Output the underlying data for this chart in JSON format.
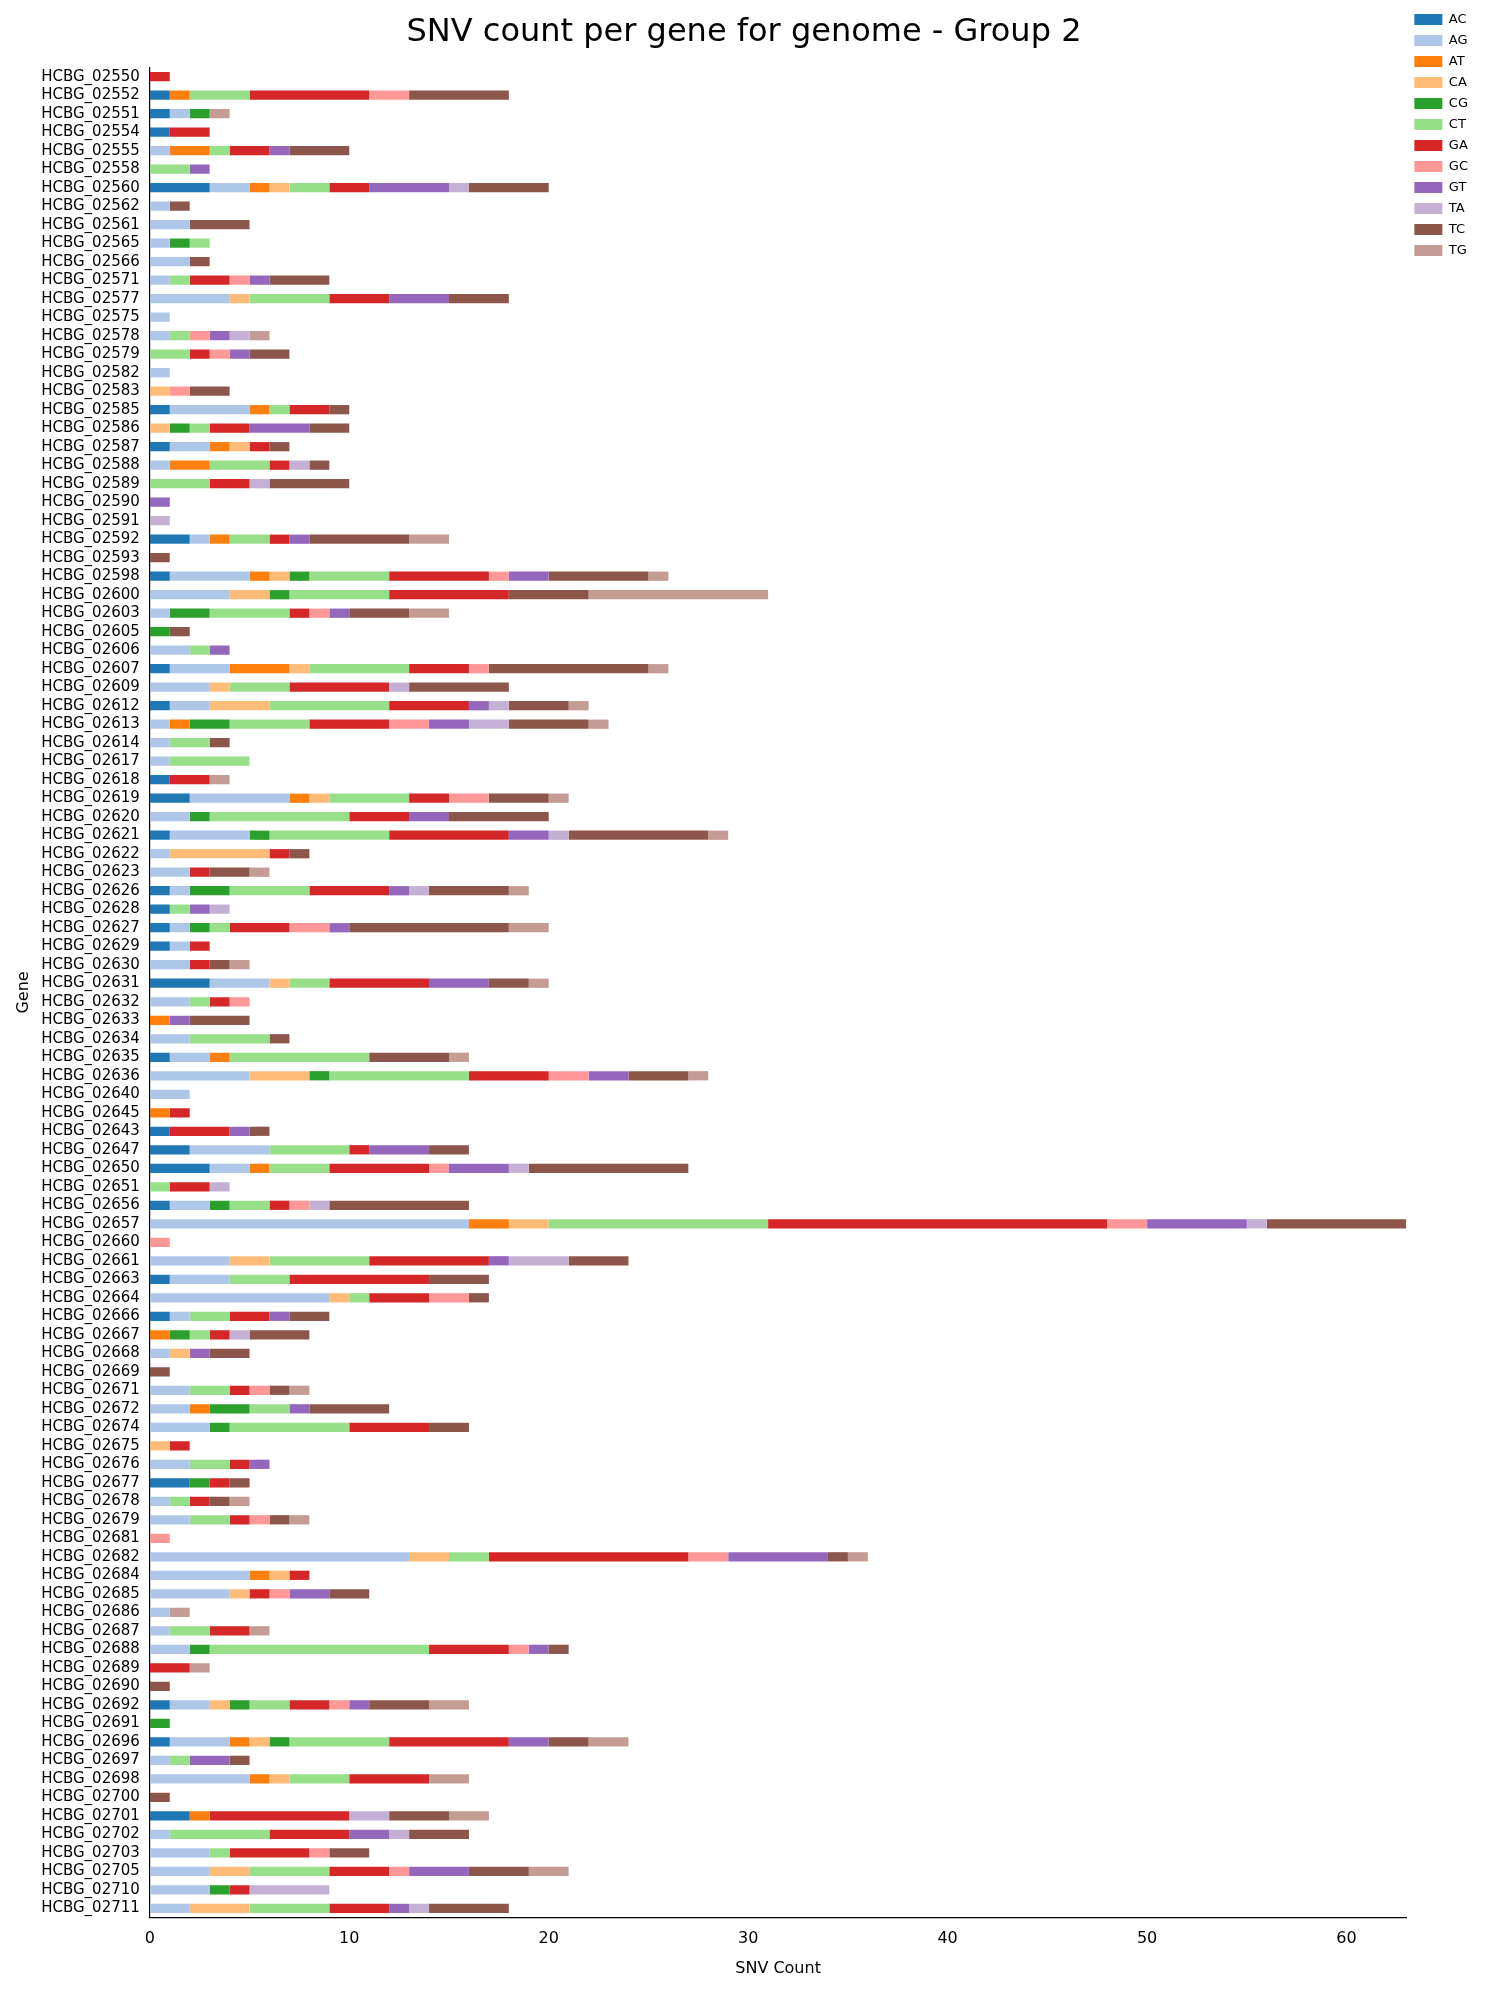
{
  "chart_data": {
    "type": "bar",
    "orientation": "horizontal",
    "stacked": true,
    "title": "SNV count per gene for genome - Group 2",
    "xlabel": "SNV Count",
    "ylabel": "Gene",
    "legend": "top right",
    "grid": false,
    "xlim": [
      0,
      63
    ],
    "xticks": [
      0,
      10,
      20,
      30,
      40,
      50,
      60
    ],
    "categories": [
      "HCBG_02550",
      "HCBG_02552",
      "HCBG_02551",
      "HCBG_02554",
      "HCBG_02555",
      "HCBG_02558",
      "HCBG_02560",
      "HCBG_02562",
      "HCBG_02561",
      "HCBG_02565",
      "HCBG_02566",
      "HCBG_02571",
      "HCBG_02577",
      "HCBG_02575",
      "HCBG_02578",
      "HCBG_02579",
      "HCBG_02582",
      "HCBG_02583",
      "HCBG_02585",
      "HCBG_02586",
      "HCBG_02587",
      "HCBG_02588",
      "HCBG_02589",
      "HCBG_02590",
      "HCBG_02591",
      "HCBG_02592",
      "HCBG_02593",
      "HCBG_02598",
      "HCBG_02600",
      "HCBG_02603",
      "HCBG_02605",
      "HCBG_02606",
      "HCBG_02607",
      "HCBG_02609",
      "HCBG_02612",
      "HCBG_02613",
      "HCBG_02614",
      "HCBG_02617",
      "HCBG_02618",
      "HCBG_02619",
      "HCBG_02620",
      "HCBG_02621",
      "HCBG_02622",
      "HCBG_02623",
      "HCBG_02626",
      "HCBG_02628",
      "HCBG_02627",
      "HCBG_02629",
      "HCBG_02630",
      "HCBG_02631",
      "HCBG_02632",
      "HCBG_02633",
      "HCBG_02634",
      "HCBG_02635",
      "HCBG_02636",
      "HCBG_02640",
      "HCBG_02645",
      "HCBG_02643",
      "HCBG_02647",
      "HCBG_02650",
      "HCBG_02651",
      "HCBG_02656",
      "HCBG_02657",
      "HCBG_02660",
      "HCBG_02661",
      "HCBG_02663",
      "HCBG_02664",
      "HCBG_02666",
      "HCBG_02667",
      "HCBG_02668",
      "HCBG_02669",
      "HCBG_02671",
      "HCBG_02672",
      "HCBG_02674",
      "HCBG_02675",
      "HCBG_02676",
      "HCBG_02677",
      "HCBG_02678",
      "HCBG_02679",
      "HCBG_02681",
      "HCBG_02682",
      "HCBG_02684",
      "HCBG_02685",
      "HCBG_02686",
      "HCBG_02687",
      "HCBG_02688",
      "HCBG_02689",
      "HCBG_02690",
      "HCBG_02692",
      "HCBG_02691",
      "HCBG_02696",
      "HCBG_02697",
      "HCBG_02698",
      "HCBG_02700",
      "HCBG_02701",
      "HCBG_02702",
      "HCBG_02703",
      "HCBG_02705",
      "HCBG_02710",
      "HCBG_02711"
    ],
    "series": [
      {
        "name": "AC",
        "color": "#1f77b4",
        "values": [
          0,
          1,
          1,
          1,
          0,
          0,
          3,
          0,
          0,
          0,
          0,
          0,
          0,
          0,
          0,
          0,
          0,
          0,
          1,
          0,
          1,
          0,
          0,
          0,
          0,
          2,
          0,
          1,
          0,
          0,
          0,
          0,
          1,
          0,
          1,
          0,
          0,
          0,
          1,
          2,
          0,
          1,
          0,
          0,
          1,
          1,
          1,
          1,
          0,
          3,
          0,
          0,
          0,
          1,
          0,
          0,
          0,
          1,
          2,
          3,
          0,
          1,
          0,
          0,
          0,
          1,
          0,
          1,
          0,
          0,
          0,
          0,
          0,
          0,
          0,
          0,
          2,
          0,
          0,
          0,
          0,
          0,
          0,
          0,
          0,
          0,
          0,
          0,
          1,
          0,
          1,
          0,
          0,
          0,
          2,
          0,
          0,
          0,
          0,
          0
        ]
      },
      {
        "name": "AG",
        "color": "#aec7e8",
        "values": [
          0,
          0,
          1,
          0,
          1,
          0,
          2,
          1,
          2,
          1,
          2,
          1,
          4,
          1,
          1,
          0,
          1,
          0,
          4,
          0,
          2,
          1,
          0,
          0,
          0,
          1,
          0,
          4,
          4,
          1,
          0,
          2,
          3,
          3,
          2,
          1,
          1,
          1,
          0,
          5,
          2,
          4,
          1,
          2,
          1,
          0,
          1,
          1,
          2,
          3,
          2,
          0,
          2,
          2,
          5,
          2,
          0,
          0,
          4,
          2,
          0,
          2,
          16,
          0,
          4,
          3,
          9,
          1,
          0,
          1,
          0,
          2,
          2,
          3,
          0,
          2,
          0,
          1,
          2,
          0,
          13,
          5,
          4,
          1,
          1,
          2,
          0,
          0,
          2,
          0,
          3,
          1,
          5,
          0,
          0,
          1,
          3,
          3,
          3,
          2
        ]
      },
      {
        "name": "AT",
        "color": "#ff7f0e",
        "values": [
          0,
          1,
          0,
          0,
          2,
          0,
          1,
          0,
          0,
          0,
          0,
          0,
          0,
          0,
          0,
          0,
          0,
          0,
          1,
          0,
          1,
          2,
          0,
          0,
          0,
          1,
          0,
          1,
          0,
          0,
          0,
          0,
          3,
          0,
          0,
          1,
          0,
          0,
          0,
          1,
          0,
          0,
          0,
          0,
          0,
          0,
          0,
          0,
          0,
          0,
          0,
          1,
          0,
          1,
          0,
          0,
          1,
          0,
          0,
          1,
          0,
          0,
          2,
          0,
          0,
          0,
          0,
          0,
          1,
          0,
          0,
          0,
          1,
          0,
          0,
          0,
          0,
          0,
          0,
          0,
          0,
          1,
          0,
          0,
          0,
          0,
          0,
          0,
          0,
          0,
          1,
          0,
          1,
          0,
          1,
          0,
          0,
          0,
          0,
          0
        ]
      },
      {
        "name": "CA",
        "color": "#ffbb78",
        "values": [
          0,
          0,
          0,
          0,
          0,
          0,
          1,
          0,
          0,
          0,
          0,
          0,
          1,
          0,
          0,
          0,
          0,
          1,
          0,
          1,
          1,
          0,
          0,
          0,
          0,
          0,
          0,
          1,
          2,
          0,
          0,
          0,
          1,
          1,
          3,
          0,
          0,
          0,
          0,
          1,
          0,
          0,
          5,
          0,
          0,
          0,
          0,
          0,
          0,
          1,
          0,
          0,
          0,
          0,
          3,
          0,
          0,
          0,
          0,
          0,
          0,
          0,
          2,
          0,
          2,
          0,
          1,
          0,
          0,
          1,
          0,
          0,
          0,
          0,
          1,
          0,
          0,
          0,
          0,
          0,
          2,
          1,
          1,
          0,
          0,
          0,
          0,
          0,
          1,
          0,
          1,
          0,
          1,
          0,
          0,
          0,
          0,
          2,
          0,
          3
        ]
      },
      {
        "name": "CG",
        "color": "#2ca02c",
        "values": [
          0,
          0,
          1,
          0,
          0,
          0,
          0,
          0,
          0,
          1,
          0,
          0,
          0,
          0,
          0,
          0,
          0,
          0,
          0,
          1,
          0,
          0,
          0,
          0,
          0,
          0,
          0,
          1,
          1,
          2,
          1,
          0,
          0,
          0,
          0,
          2,
          0,
          0,
          0,
          0,
          1,
          1,
          0,
          0,
          2,
          0,
          1,
          0,
          0,
          0,
          0,
          0,
          0,
          0,
          1,
          0,
          0,
          0,
          0,
          0,
          0,
          1,
          0,
          0,
          0,
          0,
          0,
          0,
          1,
          0,
          0,
          0,
          2,
          1,
          0,
          0,
          1,
          0,
          0,
          0,
          0,
          0,
          0,
          0,
          0,
          1,
          0,
          0,
          1,
          1,
          1,
          0,
          0,
          0,
          0,
          0,
          0,
          0,
          1,
          0
        ]
      },
      {
        "name": "CT",
        "color": "#98df8a",
        "values": [
          0,
          3,
          0,
          0,
          1,
          2,
          2,
          0,
          0,
          1,
          0,
          1,
          4,
          0,
          1,
          2,
          0,
          0,
          1,
          1,
          0,
          3,
          3,
          0,
          0,
          2,
          0,
          4,
          5,
          4,
          0,
          1,
          5,
          3,
          6,
          4,
          2,
          4,
          0,
          4,
          7,
          6,
          0,
          0,
          4,
          1,
          1,
          0,
          0,
          2,
          1,
          0,
          4,
          7,
          7,
          0,
          0,
          0,
          4,
          3,
          1,
          2,
          11,
          0,
          5,
          3,
          1,
          2,
          1,
          0,
          0,
          2,
          2,
          6,
          0,
          2,
          0,
          1,
          2,
          0,
          2,
          0,
          0,
          0,
          2,
          11,
          0,
          0,
          2,
          0,
          5,
          1,
          3,
          0,
          0,
          5,
          1,
          4,
          0,
          4
        ]
      },
      {
        "name": "GA",
        "color": "#d62728",
        "values": [
          1,
          6,
          0,
          2,
          2,
          0,
          2,
          0,
          0,
          0,
          0,
          2,
          3,
          0,
          0,
          1,
          0,
          0,
          2,
          2,
          1,
          1,
          2,
          0,
          0,
          1,
          0,
          5,
          6,
          1,
          0,
          0,
          3,
          5,
          4,
          4,
          0,
          0,
          2,
          2,
          3,
          6,
          1,
          1,
          4,
          0,
          3,
          1,
          1,
          5,
          1,
          0,
          0,
          0,
          4,
          0,
          1,
          3,
          1,
          5,
          2,
          1,
          17,
          0,
          6,
          7,
          3,
          2,
          1,
          0,
          0,
          1,
          0,
          4,
          1,
          1,
          1,
          1,
          1,
          0,
          10,
          1,
          1,
          0,
          2,
          4,
          2,
          0,
          2,
          0,
          6,
          0,
          4,
          0,
          7,
          4,
          4,
          3,
          1,
          3
        ]
      },
      {
        "name": "GC",
        "color": "#ff9896",
        "values": [
          0,
          2,
          0,
          0,
          0,
          0,
          0,
          0,
          0,
          0,
          0,
          1,
          0,
          0,
          1,
          1,
          0,
          1,
          0,
          0,
          0,
          0,
          0,
          0,
          0,
          0,
          0,
          1,
          0,
          1,
          0,
          0,
          1,
          0,
          0,
          2,
          0,
          0,
          0,
          2,
          0,
          0,
          0,
          0,
          0,
          0,
          2,
          0,
          0,
          0,
          1,
          0,
          0,
          0,
          2,
          0,
          0,
          0,
          0,
          1,
          0,
          1,
          2,
          1,
          0,
          0,
          2,
          0,
          0,
          0,
          0,
          1,
          0,
          0,
          0,
          0,
          0,
          0,
          1,
          1,
          2,
          0,
          1,
          0,
          0,
          1,
          0,
          0,
          1,
          0,
          0,
          0,
          0,
          0,
          0,
          0,
          1,
          1,
          0,
          0
        ]
      },
      {
        "name": "GT",
        "color": "#9467bd",
        "values": [
          0,
          0,
          0,
          0,
          1,
          1,
          4,
          0,
          0,
          0,
          0,
          1,
          3,
          0,
          1,
          1,
          0,
          0,
          0,
          3,
          0,
          0,
          0,
          1,
          0,
          1,
          0,
          2,
          0,
          1,
          0,
          1,
          0,
          0,
          1,
          2,
          0,
          0,
          0,
          0,
          2,
          2,
          0,
          0,
          1,
          1,
          1,
          0,
          0,
          3,
          0,
          1,
          0,
          0,
          2,
          0,
          0,
          1,
          3,
          3,
          0,
          0,
          5,
          0,
          1,
          0,
          0,
          1,
          0,
          1,
          0,
          0,
          1,
          0,
          0,
          1,
          0,
          0,
          0,
          0,
          5,
          0,
          2,
          0,
          0,
          1,
          0,
          0,
          1,
          0,
          2,
          2,
          0,
          0,
          0,
          2,
          0,
          3,
          0,
          1
        ]
      },
      {
        "name": "TA",
        "color": "#c5b0d5",
        "values": [
          0,
          0,
          0,
          0,
          0,
          0,
          1,
          0,
          0,
          0,
          0,
          0,
          0,
          0,
          1,
          0,
          0,
          0,
          0,
          0,
          0,
          1,
          1,
          0,
          1,
          0,
          0,
          0,
          0,
          0,
          0,
          0,
          0,
          1,
          1,
          2,
          0,
          0,
          0,
          0,
          0,
          1,
          0,
          0,
          1,
          1,
          0,
          0,
          0,
          0,
          0,
          0,
          0,
          0,
          0,
          0,
          0,
          0,
          0,
          1,
          1,
          1,
          1,
          0,
          3,
          0,
          0,
          0,
          1,
          0,
          0,
          0,
          0,
          0,
          0,
          0,
          0,
          0,
          0,
          0,
          0,
          0,
          0,
          0,
          0,
          0,
          0,
          0,
          0,
          0,
          0,
          0,
          0,
          0,
          2,
          1,
          0,
          0,
          4,
          1
        ]
      },
      {
        "name": "TC",
        "color": "#8c564b",
        "values": [
          0,
          5,
          0,
          0,
          3,
          0,
          4,
          1,
          3,
          0,
          1,
          3,
          3,
          0,
          0,
          2,
          0,
          2,
          1,
          2,
          1,
          1,
          4,
          0,
          0,
          5,
          1,
          5,
          4,
          3,
          1,
          0,
          8,
          5,
          3,
          4,
          1,
          0,
          0,
          3,
          5,
          7,
          1,
          2,
          4,
          0,
          8,
          0,
          1,
          2,
          0,
          3,
          1,
          4,
          3,
          0,
          0,
          1,
          2,
          8,
          0,
          7,
          7,
          0,
          3,
          3,
          1,
          2,
          3,
          2,
          1,
          1,
          4,
          2,
          0,
          0,
          1,
          1,
          1,
          0,
          1,
          0,
          2,
          0,
          0,
          1,
          0,
          1,
          3,
          0,
          2,
          1,
          0,
          1,
          3,
          3,
          2,
          3,
          0,
          4
        ]
      },
      {
        "name": "TG",
        "color": "#c49c94",
        "values": [
          0,
          0,
          1,
          0,
          0,
          0,
          0,
          0,
          0,
          0,
          0,
          0,
          0,
          0,
          1,
          0,
          0,
          0,
          0,
          0,
          0,
          0,
          0,
          0,
          0,
          2,
          0,
          1,
          9,
          2,
          0,
          0,
          1,
          0,
          1,
          1,
          0,
          0,
          1,
          1,
          0,
          1,
          0,
          1,
          1,
          0,
          2,
          0,
          1,
          1,
          0,
          0,
          0,
          1,
          1,
          0,
          0,
          0,
          0,
          0,
          0,
          0,
          0,
          0,
          0,
          0,
          0,
          0,
          0,
          0,
          0,
          1,
          0,
          0,
          0,
          0,
          0,
          1,
          1,
          0,
          1,
          0,
          0,
          1,
          1,
          0,
          1,
          0,
          2,
          0,
          2,
          0,
          2,
          0,
          2,
          0,
          0,
          2,
          0,
          0
        ]
      }
    ]
  }
}
